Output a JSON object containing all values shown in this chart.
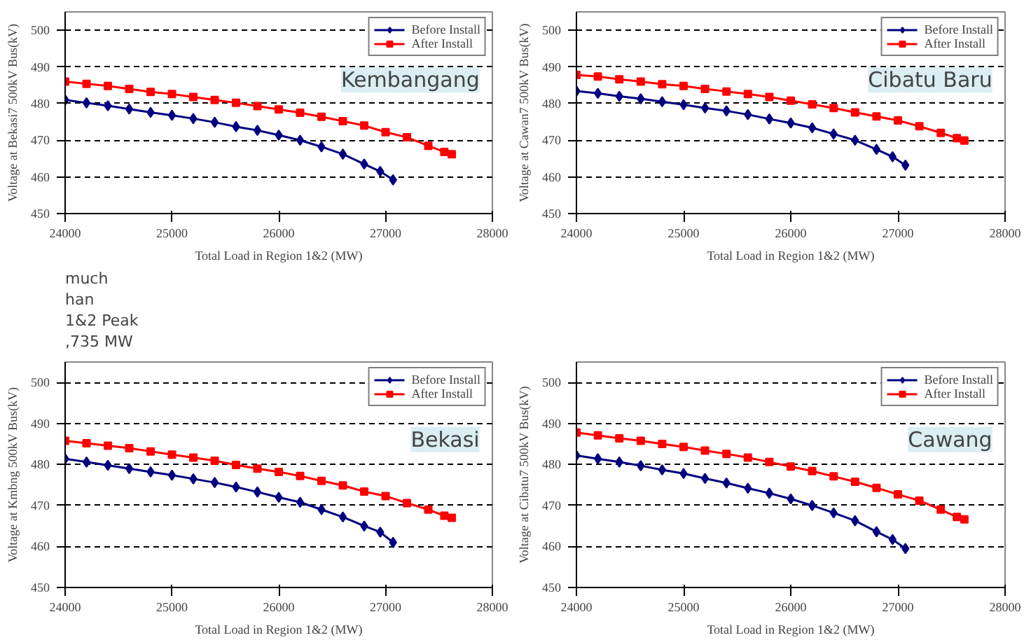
{
  "chart_data": [
    {
      "type": "line",
      "xlabel": "Total Load in Region 1&2 (MW)",
      "ylabel": "Voltage at Bekasi7 500kV Bus(kV)",
      "annotations": [
        "Kembangang",
        "much",
        "han",
        "1&2 Peak",
        ",735 MW"
      ],
      "xlim": [
        24000,
        28000
      ],
      "ylim": [
        450,
        505
      ],
      "xticks": [
        24000,
        25000,
        26000,
        27000,
        28000
      ],
      "yticks": [
        450,
        460,
        470,
        480,
        490,
        500
      ],
      "grid": "y",
      "legend": "top right",
      "series": [
        {
          "name": "Before Install",
          "color": "#000080",
          "marker": "diamond",
          "x": [
            24000,
            24200,
            24400,
            24600,
            24800,
            25000,
            25200,
            25400,
            25600,
            25800,
            26000,
            26200,
            26400,
            26600,
            26800,
            26950,
            27070
          ],
          "values": [
            481,
            480.2,
            479.4,
            478.5,
            477.6,
            476.8,
            475.9,
            474.9,
            473.7,
            472.7,
            471.4,
            470,
            468.2,
            466.2,
            463.5,
            461.5,
            459.2
          ]
        },
        {
          "name": "After Install",
          "color": "#ff0000",
          "marker": "square",
          "x": [
            24000,
            24200,
            24400,
            24600,
            24800,
            25000,
            25200,
            25400,
            25600,
            25800,
            26000,
            26200,
            26400,
            26600,
            26800,
            27000,
            27200,
            27400,
            27550,
            27620
          ],
          "values": [
            486,
            485.4,
            484.8,
            484,
            483.2,
            482.6,
            481.8,
            481,
            480.2,
            479.3,
            478.4,
            477.5,
            476.4,
            475.2,
            474,
            472.2,
            470.8,
            468.5,
            466.8,
            466.2
          ]
        }
      ]
    },
    {
      "type": "line",
      "xlabel": "Total Load in Region 1&2 (MW)",
      "ylabel": "Voltage at Cawan7 500kV Bus(kV)",
      "annotations": [
        "Cibatu Baru"
      ],
      "xlim": [
        24000,
        28000
      ],
      "ylim": [
        450,
        505
      ],
      "xticks": [
        24000,
        25000,
        26000,
        27000,
        28000
      ],
      "yticks": [
        450,
        460,
        470,
        480,
        490,
        500
      ],
      "grid": "y",
      "legend": "top right",
      "series": [
        {
          "name": "Before Install",
          "color": "#000080",
          "marker": "diamond",
          "x": [
            24000,
            24200,
            24400,
            24600,
            24800,
            25000,
            25200,
            25400,
            25600,
            25800,
            26000,
            26200,
            26400,
            26600,
            26800,
            26950,
            27070
          ],
          "values": [
            483.4,
            482.8,
            482,
            481.3,
            480.5,
            479.7,
            478.8,
            478,
            477,
            475.8,
            474.7,
            473.4,
            471.7,
            470,
            467.5,
            465.5,
            463.2
          ]
        },
        {
          "name": "After Install",
          "color": "#ff0000",
          "marker": "square",
          "x": [
            24000,
            24200,
            24400,
            24600,
            24800,
            25000,
            25200,
            25400,
            25600,
            25800,
            26000,
            26200,
            26400,
            26600,
            26800,
            27000,
            27200,
            27400,
            27550,
            27620
          ],
          "values": [
            487.8,
            487.4,
            486.6,
            486,
            485.3,
            484.8,
            484,
            483.3,
            482.6,
            481.8,
            480.8,
            479.8,
            478.8,
            477.6,
            476.5,
            475.4,
            473.8,
            472,
            470.6,
            469.9
          ]
        }
      ]
    },
    {
      "type": "line",
      "xlabel": "Total Load in Region 1&2 (MW)",
      "ylabel": "Voltage at Kmbng 500kV Bus(kV)",
      "annotations": [
        "Bekasi"
      ],
      "xlim": [
        24000,
        28000
      ],
      "ylim": [
        450,
        505
      ],
      "xticks": [
        24000,
        25000,
        26000,
        27000,
        28000
      ],
      "yticks": [
        450,
        460,
        470,
        480,
        490,
        500
      ],
      "grid": "y",
      "legend": "top right",
      "series": [
        {
          "name": "Before Install",
          "color": "#000080",
          "marker": "diamond",
          "x": [
            24000,
            24200,
            24400,
            24600,
            24800,
            25000,
            25200,
            25400,
            25600,
            25800,
            26000,
            26200,
            26400,
            26600,
            26800,
            26950,
            27070
          ],
          "values": [
            481.4,
            480.6,
            479.8,
            479,
            478.2,
            477.4,
            476.5,
            475.6,
            474.5,
            473.3,
            472,
            470.8,
            469,
            467.2,
            465,
            463.5,
            461
          ]
        },
        {
          "name": "After Install",
          "color": "#ff0000",
          "marker": "square",
          "x": [
            24000,
            24200,
            24400,
            24600,
            24800,
            25000,
            25200,
            25400,
            25600,
            25800,
            26000,
            26200,
            26400,
            26600,
            26800,
            27000,
            27200,
            27400,
            27550,
            27620
          ],
          "values": [
            485.8,
            485.2,
            484.6,
            484,
            483.2,
            482.4,
            481.7,
            480.9,
            479.9,
            479,
            478.2,
            477.2,
            476,
            474.9,
            473.4,
            472.3,
            470.6,
            469,
            467.5,
            467
          ]
        }
      ]
    },
    {
      "type": "line",
      "xlabel": "Total Load in Region 1&2 (MW)",
      "ylabel": "Voltage at Cibatu7 500kV Bus(kV)",
      "annotations": [
        "Cawang"
      ],
      "xlim": [
        24000,
        28000
      ],
      "ylim": [
        450,
        505
      ],
      "xticks": [
        24000,
        25000,
        26000,
        27000,
        28000
      ],
      "yticks": [
        450,
        460,
        470,
        480,
        490,
        500
      ],
      "grid": "y",
      "legend": "top right",
      "series": [
        {
          "name": "Before Install",
          "color": "#000080",
          "marker": "diamond",
          "x": [
            24000,
            24200,
            24400,
            24600,
            24800,
            25000,
            25200,
            25400,
            25600,
            25800,
            26000,
            26200,
            26400,
            26600,
            26800,
            26950,
            27070
          ],
          "values": [
            482.2,
            481.4,
            480.6,
            479.7,
            478.7,
            477.8,
            476.6,
            475.5,
            474.2,
            473,
            471.6,
            470,
            468.2,
            466.3,
            463.6,
            461.7,
            459.5
          ]
        },
        {
          "name": "After Install",
          "color": "#ff0000",
          "marker": "square",
          "x": [
            24000,
            24200,
            24400,
            24600,
            24800,
            25000,
            25200,
            25400,
            25600,
            25800,
            26000,
            26200,
            26400,
            26600,
            26800,
            27000,
            27200,
            27400,
            27550,
            27620
          ],
          "values": [
            487.8,
            487.1,
            486.4,
            485.8,
            485,
            484.3,
            483.4,
            482.6,
            481.7,
            480.6,
            479.5,
            478.4,
            477.1,
            475.8,
            474.3,
            472.7,
            471.2,
            469,
            467.2,
            466.6
          ]
        }
      ]
    }
  ]
}
